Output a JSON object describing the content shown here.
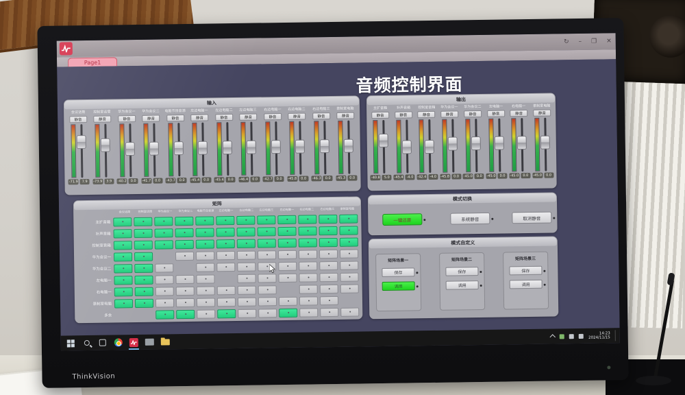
{
  "monitor": {
    "brand": "ThinkVision"
  },
  "window": {
    "tab": "Page1",
    "title": "音频控制界面",
    "control_glyphs": [
      "↻",
      "–",
      "❐",
      "✕"
    ]
  },
  "colors": {
    "matrix_on": "#2bd487",
    "button_active_green": "#2ce52c",
    "app_red": "#d5304a",
    "canvas_bg": "#454560"
  },
  "input_panel": {
    "title": "输入",
    "mute_label": "静音",
    "channels": [
      {
        "label": "会议话筒",
        "meter": "-71.9",
        "gain": "7.9",
        "fader": 0.28
      },
      {
        "label": "控制室话筒",
        "meter": "-73.9",
        "gain": "3.9",
        "fader": 0.36
      },
      {
        "label": "华为会议一",
        "meter": "-40.2",
        "gain": "0.0",
        "fader": 0.46
      },
      {
        "label": "华为会议二",
        "meter": "-41.7",
        "gain": "0.0",
        "fader": 0.46
      },
      {
        "label": "电脑节目音源",
        "meter": "-43.7",
        "gain": "0.0",
        "fader": 0.46
      },
      {
        "label": "左边电脑一",
        "meter": "-45.4",
        "gain": "0.0",
        "fader": 0.46
      },
      {
        "label": "左边电脑二",
        "meter": "-45.4",
        "gain": "0.0",
        "fader": 0.46
      },
      {
        "label": "左边电脑三",
        "meter": "-46.4",
        "gain": "0.0",
        "fader": 0.46
      },
      {
        "label": "右边电脑一",
        "meter": "-42.7",
        "gain": "0.0",
        "fader": 0.46
      },
      {
        "label": "右边电脑二",
        "meter": "-45.8",
        "gain": "0.0",
        "fader": 0.46
      },
      {
        "label": "右边电脑三",
        "meter": "-46.3",
        "gain": "0.0",
        "fader": 0.46
      },
      {
        "label": "录制室电脑",
        "meter": "-45.3",
        "gain": "0.0",
        "fader": 0.46
      }
    ]
  },
  "output_panel": {
    "title": "输出",
    "mute_label": "静音",
    "channels": [
      {
        "label": "主扩音箱",
        "meter": "-40.8",
        "gain": "5.0",
        "fader": 0.34
      },
      {
        "label": "补声音箱",
        "meter": "-45.4",
        "gain": "-4.0",
        "fader": 0.52
      },
      {
        "label": "控制室音箱",
        "meter": "-42.4",
        "gain": "-4.0",
        "fader": 0.52
      },
      {
        "label": "华为会议一",
        "meter": "-45.8",
        "gain": "0.0",
        "fader": 0.44
      },
      {
        "label": "华为会议二",
        "meter": "-45.0",
        "gain": "0.0",
        "fader": 0.44
      },
      {
        "label": "左电脑一",
        "meter": "-45.0",
        "gain": "0.0",
        "fader": 0.44
      },
      {
        "label": "右电脑一",
        "meter": "-45.0",
        "gain": "0.0",
        "fader": 0.44
      },
      {
        "label": "录制室电脑",
        "meter": "-45.0",
        "gain": "0.0",
        "fader": 0.44
      }
    ]
  },
  "matrix": {
    "title": "矩阵",
    "col_labels": [
      "会议话筒",
      "控制室话筒",
      "华为会议一",
      "华为会议二",
      "电脑节目音源",
      "左边电脑一",
      "左边电脑二",
      "左边电脑三",
      "右边电脑一",
      "右边电脑二",
      "右边电脑三",
      "录制室电脑"
    ],
    "rows": [
      {
        "label": "主扩音箱",
        "cells": [
          "on",
          "on",
          "on",
          "on",
          "on",
          "on",
          "on",
          "on",
          "on",
          "on",
          "on",
          "on"
        ]
      },
      {
        "label": "补声音箱",
        "cells": [
          "on",
          "on",
          "on",
          "on",
          "on",
          "on",
          "on",
          "on",
          "on",
          "on",
          "on",
          "on"
        ]
      },
      {
        "label": "控制室音箱",
        "cells": [
          "on",
          "on",
          "on",
          "on",
          "on",
          "on",
          "on",
          "on",
          "on",
          "on",
          "on",
          "on"
        ]
      },
      {
        "label": "华为会议一",
        "cells": [
          "on",
          "on",
          "none",
          "off",
          "off",
          "off",
          "off",
          "off",
          "off",
          "off",
          "off",
          "off"
        ]
      },
      {
        "label": "华为会议二",
        "cells": [
          "on",
          "on",
          "off",
          "none",
          "off",
          "off",
          "off",
          "off",
          "off",
          "off",
          "off",
          "off"
        ]
      },
      {
        "label": "左电脑一",
        "cells": [
          "on",
          "on",
          "off",
          "off",
          "off",
          "none",
          "off",
          "off",
          "off",
          "off",
          "off",
          "off"
        ]
      },
      {
        "label": "右电脑一",
        "cells": [
          "on",
          "on",
          "off",
          "off",
          "off",
          "off",
          "off",
          "off",
          "none",
          "off",
          "off",
          "off"
        ]
      },
      {
        "label": "录制室电脑",
        "cells": [
          "on",
          "on",
          "off",
          "off",
          "off",
          "off",
          "off",
          "off",
          "off",
          "off",
          "off",
          "none"
        ]
      },
      {
        "label": "多余",
        "cells": [
          "none",
          "none",
          "on",
          "on",
          "off",
          "on",
          "off",
          "off",
          "on",
          "off",
          "off",
          "off"
        ]
      }
    ]
  },
  "mode_switch": {
    "title": "模式切换",
    "buttons": [
      {
        "label": "一键还原",
        "active": true
      },
      {
        "label": "系统静音",
        "active": false
      },
      {
        "label": "取消静音",
        "active": false
      }
    ]
  },
  "mode_custom": {
    "title": "模式自定义",
    "save_label": "保存",
    "recall_label": "调用",
    "scenes": [
      {
        "label": "矩阵场景一",
        "recall_active": true
      },
      {
        "label": "矩阵场景二",
        "recall_active": false
      },
      {
        "label": "矩阵场景三",
        "recall_active": false
      }
    ]
  },
  "taskbar": {
    "time": "14:23",
    "date": "2024/11/15"
  }
}
